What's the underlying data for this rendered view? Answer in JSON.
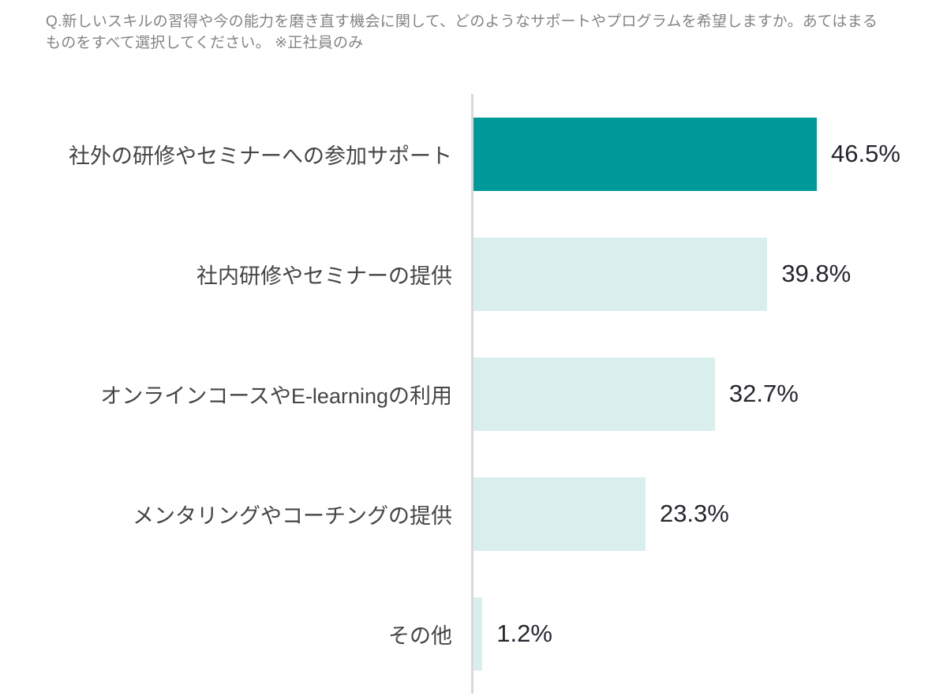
{
  "title": {
    "line1": "Q.新しいスキルの習得や今の能力を磨き直す機会に関して、どのようなサポートやプログラムを希望しますか。あてはまる",
    "line2": "ものをすべて選択してください。 ※正社員のみ"
  },
  "chart_data": {
    "type": "bar",
    "orientation": "horizontal",
    "title": "Q.新しいスキルの習得や今の能力を磨き直す機会に関して、どのようなサポートやプログラムを希望しますか。あてはまるものをすべて選択してください。 ※正社員のみ",
    "categories": [
      "社外の研修やセミナーへの参加サポート",
      "社内研修やセミナーの提供",
      "オンラインコースやE-learningの利用",
      "メンタリングやコーチングの提供",
      "その他"
    ],
    "values": [
      46.5,
      39.8,
      32.7,
      23.3,
      1.2
    ],
    "value_labels": [
      "46.5%",
      "39.8%",
      "32.7%",
      "23.3%",
      "1.2%"
    ],
    "unit": "%",
    "grid": false,
    "legend": false,
    "highlight_index": 0,
    "colors": {
      "highlight_bar": "#00999a",
      "bar": "#d9efed",
      "axis_line": "#d8d8d8",
      "title_text": "#848484",
      "category_text": "#454545",
      "value_text": "#26262e"
    }
  }
}
